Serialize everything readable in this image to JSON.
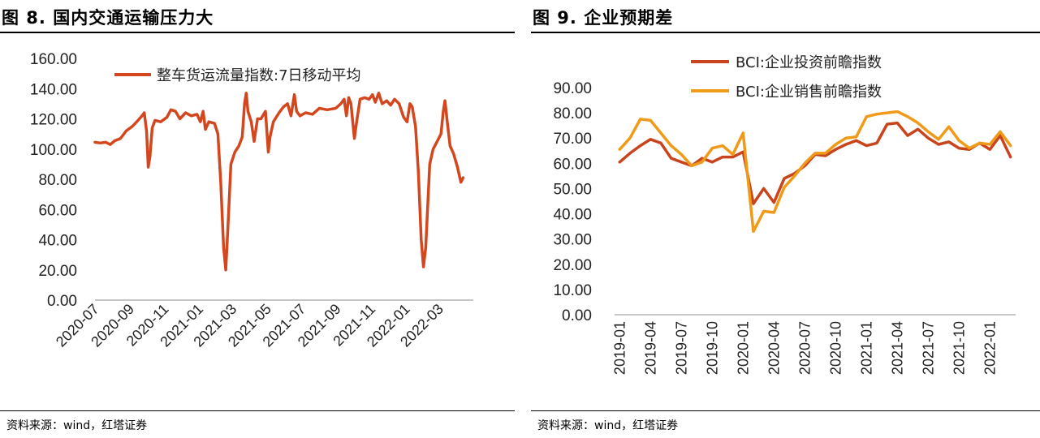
{
  "figures": [
    {
      "title": "图 8. 国内交通运输压力大",
      "source": "资料来源：wind，红塔证券"
    },
    {
      "title": "图 9. 企业预期差",
      "source": "资料来源：wind，红塔证券"
    }
  ],
  "chart_data": [
    {
      "type": "line",
      "title": "",
      "xlabel": "",
      "ylabel": "",
      "ylim": [
        0,
        160
      ],
      "yticks": [
        "0.00",
        "20.00",
        "40.00",
        "60.00",
        "80.00",
        "100.00",
        "120.00",
        "140.00",
        "160.00"
      ],
      "x_tick_labels": [
        "2020-07",
        "2020-09",
        "2020-11",
        "2021-01",
        "2021-03",
        "2021-05",
        "2021-07",
        "2021-09",
        "2021-11",
        "2022-01",
        "2022-03"
      ],
      "x_range": [
        "2020-07-01",
        "2022-04-30"
      ],
      "legend_position": "top-center",
      "grid": false,
      "series": [
        {
          "name": "整车货运流量指数:7日移动平均",
          "color": "#d4471e",
          "points": [
            [
              "2020-07-01",
              104.5
            ],
            [
              "2020-07-10",
              104
            ],
            [
              "2020-07-20",
              104.5
            ],
            [
              "2020-07-28",
              103
            ],
            [
              "2020-08-05",
              105.5
            ],
            [
              "2020-08-15",
              107
            ],
            [
              "2020-08-25",
              112
            ],
            [
              "2020-09-05",
              115
            ],
            [
              "2020-09-15",
              119
            ],
            [
              "2020-09-22",
              122
            ],
            [
              "2020-09-26",
              124
            ],
            [
              "2020-09-30",
              112
            ],
            [
              "2020-10-03",
              88
            ],
            [
              "2020-10-06",
              95
            ],
            [
              "2020-10-10",
              114
            ],
            [
              "2020-10-15",
              119
            ],
            [
              "2020-10-25",
              118
            ],
            [
              "2020-11-05",
              121
            ],
            [
              "2020-11-12",
              126
            ],
            [
              "2020-11-20",
              125
            ],
            [
              "2020-11-28",
              120
            ],
            [
              "2020-12-08",
              124
            ],
            [
              "2020-12-18",
              122
            ],
            [
              "2020-12-28",
              123
            ],
            [
              "2021-01-03",
              118
            ],
            [
              "2021-01-08",
              125
            ],
            [
              "2021-01-12",
              113
            ],
            [
              "2021-01-18",
              118
            ],
            [
              "2021-01-28",
              117
            ],
            [
              "2021-02-03",
              110
            ],
            [
              "2021-02-08",
              78
            ],
            [
              "2021-02-13",
              35
            ],
            [
              "2021-02-17",
              20
            ],
            [
              "2021-02-21",
              50
            ],
            [
              "2021-02-26",
              90
            ],
            [
              "2021-03-05",
              98
            ],
            [
              "2021-03-12",
              102
            ],
            [
              "2021-03-18",
              108
            ],
            [
              "2021-03-22",
              130
            ],
            [
              "2021-03-25",
              137
            ],
            [
              "2021-03-28",
              125
            ],
            [
              "2021-04-03",
              118
            ],
            [
              "2021-04-08",
              105
            ],
            [
              "2021-04-14",
              120
            ],
            [
              "2021-04-20",
              120
            ],
            [
              "2021-04-28",
              125
            ],
            [
              "2021-05-03",
              98
            ],
            [
              "2021-05-06",
              108
            ],
            [
              "2021-05-12",
              118
            ],
            [
              "2021-05-22",
              124
            ],
            [
              "2021-05-30",
              128
            ],
            [
              "2021-06-06",
              130
            ],
            [
              "2021-06-12",
              122
            ],
            [
              "2021-06-18",
              136
            ],
            [
              "2021-06-22",
              125
            ],
            [
              "2021-06-28",
              122
            ],
            [
              "2021-07-08",
              124
            ],
            [
              "2021-07-20",
              123
            ],
            [
              "2021-08-01",
              127
            ],
            [
              "2021-08-15",
              126
            ],
            [
              "2021-08-30",
              127
            ],
            [
              "2021-09-08",
              130
            ],
            [
              "2021-09-14",
              133
            ],
            [
              "2021-09-18",
              122
            ],
            [
              "2021-09-22",
              134
            ],
            [
              "2021-09-26",
              130
            ],
            [
              "2021-10-02",
              107
            ],
            [
              "2021-10-06",
              118
            ],
            [
              "2021-10-12",
              133
            ],
            [
              "2021-10-20",
              134
            ],
            [
              "2021-10-28",
              133
            ],
            [
              "2021-11-03",
              136
            ],
            [
              "2021-11-08",
              131
            ],
            [
              "2021-11-14",
              137
            ],
            [
              "2021-11-20",
              130
            ],
            [
              "2021-11-28",
              132
            ],
            [
              "2021-12-05",
              129
            ],
            [
              "2021-12-12",
              133
            ],
            [
              "2021-12-20",
              130
            ],
            [
              "2021-12-28",
              121
            ],
            [
              "2022-01-03",
              118
            ],
            [
              "2022-01-08",
              130
            ],
            [
              "2022-01-12",
              128
            ],
            [
              "2022-01-18",
              115
            ],
            [
              "2022-01-23",
              85
            ],
            [
              "2022-01-28",
              40
            ],
            [
              "2022-02-01",
              22
            ],
            [
              "2022-02-05",
              35
            ],
            [
              "2022-02-12",
              90
            ],
            [
              "2022-02-18",
              100
            ],
            [
              "2022-02-25",
              105
            ],
            [
              "2022-03-04",
              110
            ],
            [
              "2022-03-08",
              125
            ],
            [
              "2022-03-11",
              132
            ],
            [
              "2022-03-15",
              118
            ],
            [
              "2022-03-20",
              102
            ],
            [
              "2022-03-26",
              97
            ],
            [
              "2022-04-02",
              88
            ],
            [
              "2022-04-08",
              78
            ],
            [
              "2022-04-12",
              81
            ]
          ]
        }
      ]
    },
    {
      "type": "line",
      "title": "",
      "xlabel": "",
      "ylabel": "",
      "ylim": [
        0,
        90
      ],
      "yticks": [
        "0.00",
        "10.00",
        "20.00",
        "30.00",
        "40.00",
        "50.00",
        "60.00",
        "70.00",
        "80.00",
        "90.00"
      ],
      "x_tick_labels": [
        "2019-01",
        "2019-04",
        "2019-07",
        "2019-10",
        "2020-01",
        "2020-04",
        "2020-07",
        "2020-10",
        "2021-01",
        "2021-04",
        "2021-07",
        "2021-10",
        "2022-01"
      ],
      "x": [
        "2019-01",
        "2019-02",
        "2019-03",
        "2019-04",
        "2019-05",
        "2019-06",
        "2019-07",
        "2019-08",
        "2019-09",
        "2019-10",
        "2019-11",
        "2019-12",
        "2020-01",
        "2020-02",
        "2020-03",
        "2020-04",
        "2020-05",
        "2020-06",
        "2020-07",
        "2020-08",
        "2020-09",
        "2020-10",
        "2020-11",
        "2020-12",
        "2021-01",
        "2021-02",
        "2021-03",
        "2021-04",
        "2021-05",
        "2021-06",
        "2021-07",
        "2021-08",
        "2021-09",
        "2021-10",
        "2021-11",
        "2021-12",
        "2022-01",
        "2022-02",
        "2022-03"
      ],
      "legend_position": "top-center",
      "grid": false,
      "series": [
        {
          "name": "BCI:企业投资前瞻指数",
          "color": "#c8441c",
          "values": [
            60.5,
            64,
            67,
            69.5,
            68,
            62,
            60.5,
            59,
            62,
            60.5,
            62.5,
            62.5,
            64.5,
            44,
            50,
            44.5,
            54,
            56,
            59,
            63.5,
            63,
            65.5,
            67.5,
            69,
            67,
            68,
            75.5,
            76,
            71,
            73.5,
            70,
            67.5,
            68.5,
            66,
            65.5,
            68,
            65.5,
            71,
            62.5
          ]
        },
        {
          "name": "BCI:企业销售前瞻指数",
          "color": "#ef9a18",
          "values": [
            65.5,
            70,
            77.5,
            77,
            72,
            67,
            63.5,
            59,
            60.5,
            66,
            67,
            63.5,
            72,
            33,
            41,
            40.5,
            50.5,
            55,
            60,
            64,
            64,
            67.5,
            70,
            70.5,
            78.5,
            79.5,
            80,
            80.5,
            78.5,
            76,
            72.5,
            69.5,
            74.5,
            69,
            66,
            68,
            67.5,
            72.5,
            67
          ]
        }
      ]
    }
  ]
}
